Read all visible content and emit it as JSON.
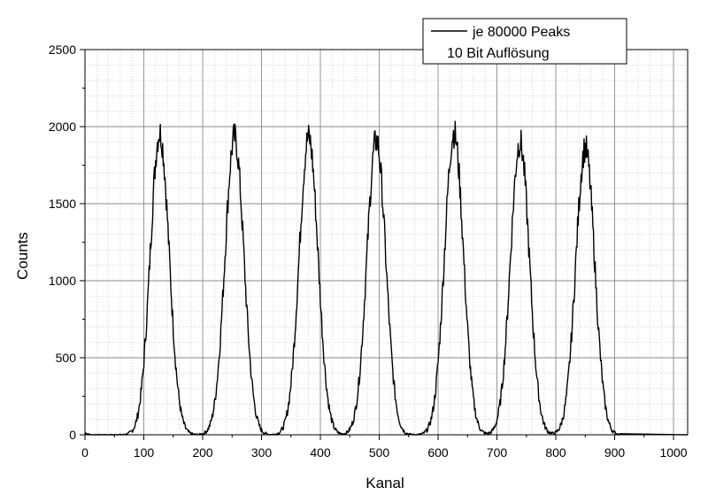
{
  "chart_data": {
    "type": "line",
    "xlabel": "Kanal",
    "ylabel": "Counts",
    "xlim": [
      0,
      1024
    ],
    "ylim": [
      0,
      2500
    ],
    "x_ticks": [
      "0",
      "100",
      "200",
      "300",
      "400",
      "500",
      "600",
      "700",
      "800",
      "900",
      "1000"
    ],
    "y_ticks": [
      "0",
      "500",
      "1000",
      "1500",
      "2000",
      "2500"
    ],
    "grid": true,
    "legend_position": "top-right",
    "legend": [
      "je 80000 Peaks",
      "10 Bit Auflösung"
    ],
    "series": [
      {
        "name": "je 80000 Peaks",
        "color": "#000000",
        "peaks": [
          {
            "center": 127,
            "height": 1960,
            "sigma": 16
          },
          {
            "center": 254,
            "height": 1930,
            "sigma": 16
          },
          {
            "center": 380,
            "height": 1930,
            "sigma": 16
          },
          {
            "center": 495,
            "height": 1910,
            "sigma": 16
          },
          {
            "center": 627,
            "height": 1960,
            "sigma": 16
          },
          {
            "center": 739,
            "height": 1900,
            "sigma": 16
          },
          {
            "center": 850,
            "height": 1860,
            "sigma": 16
          }
        ],
        "baseline_start_counts": 15
      }
    ]
  }
}
